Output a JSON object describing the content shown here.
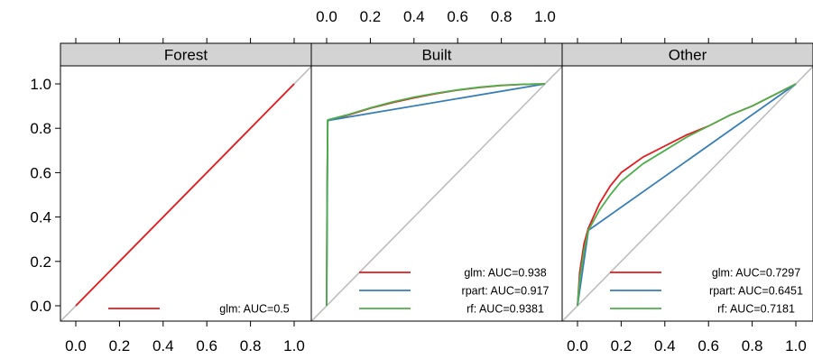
{
  "chart_data": {
    "type": "line",
    "layout": "three-panel trellis (lattice) ROC plot",
    "xlim": [
      0,
      1
    ],
    "ylim": [
      0,
      1
    ],
    "x_ticks": [
      "0.0",
      "0.2",
      "0.4",
      "0.6",
      "0.8",
      "1.0"
    ],
    "y_ticks": [
      "0.0",
      "0.2",
      "0.4",
      "0.6",
      "0.8",
      "1.0"
    ],
    "reference_line": {
      "x": [
        0,
        1
      ],
      "y": [
        0,
        1
      ],
      "color": "#bebebe"
    },
    "colors": {
      "glm": "#e41a1c",
      "rpart": "#377eb8",
      "rf": "#4daf4a"
    },
    "legend_position": "bottom-right",
    "panels": [
      {
        "name": "Forest",
        "series": [
          {
            "name": "glm: AUC=0.5",
            "color": "#e41a1c",
            "x": [
              0,
              1
            ],
            "y": [
              0,
              1
            ]
          }
        ]
      },
      {
        "name": "Built",
        "series": [
          {
            "name": "glm: AUC=0.938",
            "color": "#e41a1c",
            "x": [
              0,
              0.002,
              0.005,
              0.1,
              0.2,
              0.3,
              0.4,
              0.5,
              0.6,
              0.7,
              0.8,
              0.9,
              1.0
            ],
            "y": [
              0,
              0.5,
              0.835,
              0.86,
              0.89,
              0.915,
              0.937,
              0.956,
              0.972,
              0.984,
              0.993,
              0.998,
              1.0
            ]
          },
          {
            "name": "rpart: AUC=0.917",
            "color": "#377eb8",
            "x": [
              0,
              0.005,
              1.0
            ],
            "y": [
              0,
              0.835,
              1.0
            ]
          },
          {
            "name": "rf: AUC=0.9381",
            "color": "#4daf4a",
            "x": [
              0,
              0.002,
              0.005,
              0.1,
              0.2,
              0.3,
              0.4,
              0.5,
              0.6,
              0.7,
              0.8,
              0.9,
              1.0
            ],
            "y": [
              0,
              0.5,
              0.838,
              0.862,
              0.892,
              0.918,
              0.94,
              0.958,
              0.973,
              0.985,
              0.994,
              0.998,
              1.0
            ]
          }
        ]
      },
      {
        "name": "Other",
        "series": [
          {
            "name": "glm: AUC=0.7297",
            "color": "#e41a1c",
            "x": [
              0,
              0.01,
              0.03,
              0.05,
              0.1,
              0.15,
              0.2,
              0.3,
              0.4,
              0.5,
              0.6,
              0.7,
              0.8,
              0.9,
              1.0
            ],
            "y": [
              0,
              0.15,
              0.28,
              0.35,
              0.46,
              0.54,
              0.6,
              0.67,
              0.72,
              0.77,
              0.81,
              0.86,
              0.9,
              0.95,
              1.0
            ]
          },
          {
            "name": "rpart: AUC=0.6451",
            "color": "#377eb8",
            "x": [
              0,
              0.05,
              1.0
            ],
            "y": [
              0,
              0.34,
              1.0
            ]
          },
          {
            "name": "rf: AUC=0.7181",
            "color": "#4daf4a",
            "x": [
              0,
              0.01,
              0.03,
              0.05,
              0.1,
              0.15,
              0.2,
              0.3,
              0.4,
              0.5,
              0.6,
              0.7,
              0.8,
              0.9,
              1.0
            ],
            "y": [
              0,
              0.12,
              0.25,
              0.34,
              0.43,
              0.5,
              0.56,
              0.64,
              0.7,
              0.76,
              0.81,
              0.86,
              0.9,
              0.95,
              1.0
            ]
          }
        ]
      }
    ]
  }
}
